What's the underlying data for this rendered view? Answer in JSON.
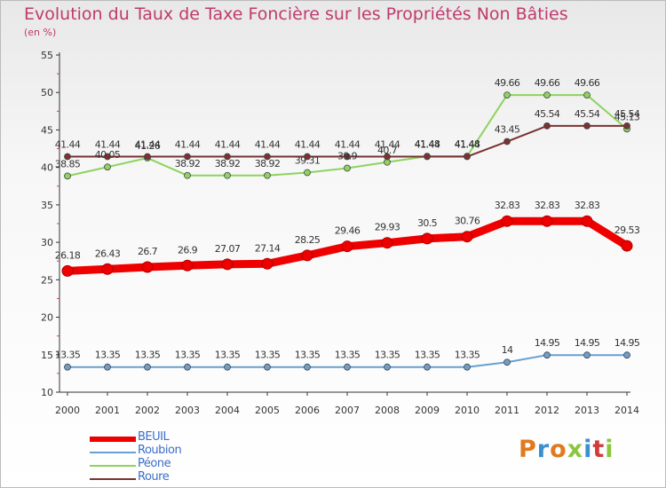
{
  "header": {
    "title": "Evolution du Taux de Taxe Foncière sur les Propriétés Non Bâties",
    "subtitle": "(en %)"
  },
  "logo": {
    "text": "Proxiti",
    "colors": [
      "#e07a1f",
      "#3a8fd0",
      "#e07a1f",
      "#8cc63f",
      "#3a8fd0",
      "#d03c3c",
      "#8cc63f"
    ]
  },
  "chart_data": {
    "type": "line",
    "title": "Evolution du Taux de Taxe Foncière sur les Propriétés Non Bâties",
    "ylabel": "(en %)",
    "xlabel": "",
    "categories": [
      "2000",
      "2001",
      "2002",
      "2003",
      "2004",
      "2005",
      "2006",
      "2007",
      "2008",
      "2009",
      "2010",
      "2011",
      "2012",
      "2013",
      "2014"
    ],
    "ylim": [
      10,
      55
    ],
    "yticks": [
      "10",
      "15",
      "20",
      "25",
      "30",
      "35",
      "40",
      "45",
      "50",
      "55"
    ],
    "grid": false,
    "legend": "bottom-left",
    "series": [
      {
        "name": "BEUIL",
        "color": "#ee0000",
        "values": [
          26.18,
          26.43,
          26.7,
          26.9,
          27.07,
          27.14,
          28.25,
          29.46,
          29.93,
          30.5,
          30.76,
          32.83,
          32.83,
          32.83,
          29.53
        ],
        "labels": [
          "26.18",
          "26.43",
          "26.7",
          "26.9",
          "27.07",
          "27.14",
          "28.25",
          "29.46",
          "29.93",
          "30.5",
          "30.76",
          "32.83",
          "32.83",
          "32.83",
          "29.53"
        ]
      },
      {
        "name": "Roubion",
        "color": "#6a9fd0",
        "values": [
          13.35,
          13.35,
          13.35,
          13.35,
          13.35,
          13.35,
          13.35,
          13.35,
          13.35,
          13.35,
          13.35,
          14,
          14.95,
          14.95,
          14.95
        ],
        "labels": [
          "13.35",
          "13.35",
          "13.35",
          "13.35",
          "13.35",
          "13.35",
          "13.35",
          "13.35",
          "13.35",
          "13.35",
          "13.35",
          "14",
          "14.95",
          "14.95",
          "14.95"
        ]
      },
      {
        "name": "Péone",
        "color": "#8dd35f",
        "values": [
          38.85,
          40.05,
          41.26,
          38.92,
          38.92,
          38.92,
          39.31,
          39.9,
          40.7,
          41.48,
          41.48,
          49.66,
          49.66,
          49.66,
          45.13
        ],
        "labels": [
          "38.85",
          "40.05",
          "41.26",
          "38.92",
          "38.92",
          "38.92",
          "39.31",
          "39.9",
          "40.7",
          "41.48",
          "41.48",
          "49.66",
          "49.66",
          "49.66",
          "45.13"
        ]
      },
      {
        "name": "Roure",
        "color": "#7a3232",
        "values": [
          41.44,
          41.44,
          41.44,
          41.44,
          41.44,
          41.44,
          41.44,
          41.44,
          41.44,
          41.44,
          41.44,
          43.45,
          45.54,
          45.54,
          45.54
        ],
        "labels": [
          "41.44",
          "41.44",
          "41.44",
          "41.44",
          "41.44",
          "41.44",
          "41.44",
          "41.44",
          "41.44",
          "41.44",
          "41.44",
          "43.45",
          "45.54",
          "45.54",
          "45.54"
        ]
      }
    ]
  }
}
